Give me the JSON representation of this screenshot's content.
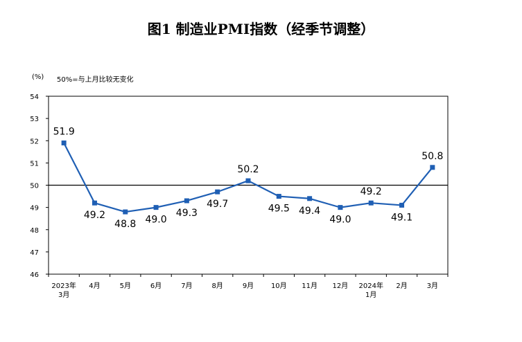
{
  "title": "图1  制造业PMI指数（经季节调整）",
  "unit": "(%)",
  "note": "50%=与上月比较无变化",
  "chart_data": {
    "type": "line",
    "title": "图1  制造业PMI指数（经季节调整）",
    "ylabel": "(%)",
    "xlabel": "",
    "ylim": [
      46,
      54
    ],
    "yticks": [
      46,
      47,
      48,
      49,
      50,
      51,
      52,
      53,
      54
    ],
    "reference_line": 50,
    "grid": false,
    "categories": [
      [
        "2023年",
        "3月"
      ],
      [
        "4月"
      ],
      [
        "5月"
      ],
      [
        "6月"
      ],
      [
        "7月"
      ],
      [
        "8月"
      ],
      [
        "9月"
      ],
      [
        "10月"
      ],
      [
        "11月"
      ],
      [
        "12月"
      ],
      [
        "2024年",
        "1月"
      ],
      [
        "2月"
      ],
      [
        "3月"
      ]
    ],
    "series": [
      {
        "values": [
          51.9,
          49.2,
          48.8,
          49.0,
          49.3,
          49.7,
          50.2,
          49.5,
          49.4,
          49.0,
          49.2,
          49.1,
          50.8
        ],
        "labels": [
          "51.9",
          "49.2",
          "48.8",
          "49.0",
          "49.3",
          "49.7",
          "50.2",
          "49.5",
          "49.4",
          "49.0",
          "49.2",
          "49.1",
          "50.8"
        ],
        "color": "#1f5fb4"
      }
    ]
  }
}
